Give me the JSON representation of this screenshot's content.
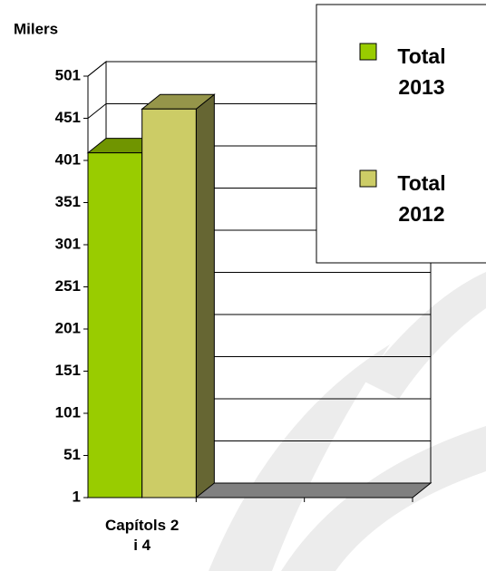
{
  "chart_data": {
    "type": "bar3d",
    "y_label": "Milers",
    "categories": [
      "Capítols 2 i 4",
      null,
      null
    ],
    "series": [
      {
        "name": "Total 2013",
        "color": "#99cc00",
        "values": [
          410,
          null,
          null
        ]
      },
      {
        "name": "Total 2012",
        "color": "#cccc66",
        "values": [
          462,
          null,
          null
        ]
      }
    ],
    "ylim": [
      1,
      501
    ],
    "yticks": [
      1,
      51,
      101,
      151,
      201,
      251,
      301,
      351,
      401,
      451,
      501
    ],
    "grid": true,
    "legend": "top-right"
  }
}
